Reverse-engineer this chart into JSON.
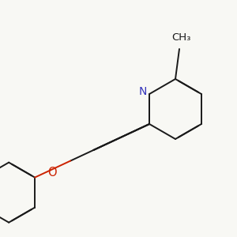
{
  "bg_color": "#f8f8f4",
  "bond_color": "#1a1a1a",
  "N_color": "#3333bb",
  "O_color": "#cc2200",
  "Cl_color": "#228B22",
  "line_width": 1.4,
  "dbl_off": 0.011,
  "trp_off": 0.013,
  "font_size": 9.5,
  "figsize": [
    3.0,
    3.0
  ],
  "dpi": 100,
  "xlim": [
    0,
    300
  ],
  "ylim": [
    0,
    300
  ]
}
